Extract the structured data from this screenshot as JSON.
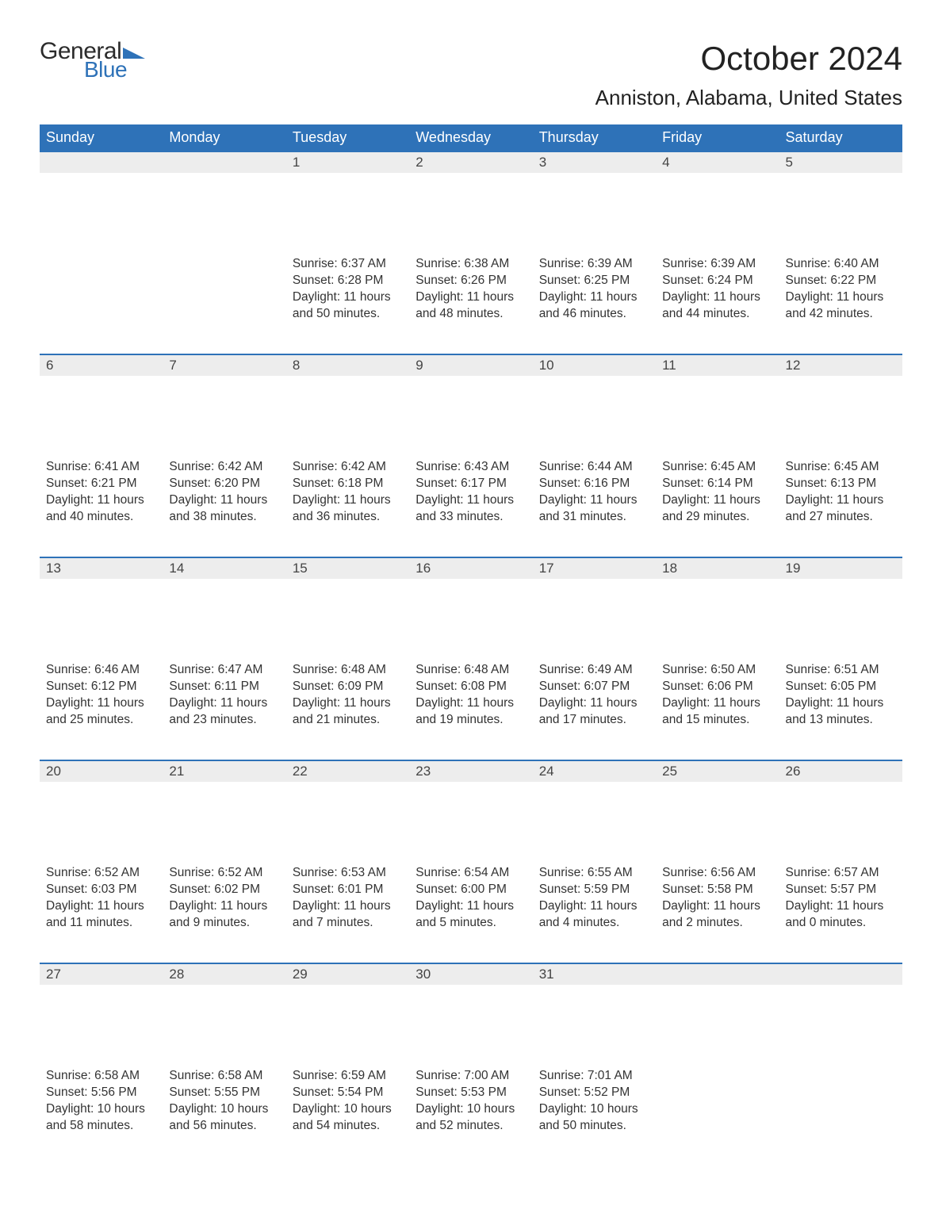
{
  "logo": {
    "text_general": "General",
    "text_blue": "Blue",
    "flag_color": "#2e72b8"
  },
  "title": "October 2024",
  "location": "Anniston, Alabama, United States",
  "colors": {
    "header_bg": "#2e72b8",
    "header_text": "#ffffff",
    "daynum_bg": "#ededed",
    "row_border": "#2e72b8",
    "body_text": "#333333",
    "page_bg": "#ffffff"
  },
  "calendar": {
    "type": "table",
    "columns": [
      "Sunday",
      "Monday",
      "Tuesday",
      "Wednesday",
      "Thursday",
      "Friday",
      "Saturday"
    ],
    "weeks": [
      [
        null,
        null,
        {
          "n": "1",
          "sunrise": "6:37 AM",
          "sunset": "6:28 PM",
          "daylight": "11 hours and 50 minutes."
        },
        {
          "n": "2",
          "sunrise": "6:38 AM",
          "sunset": "6:26 PM",
          "daylight": "11 hours and 48 minutes."
        },
        {
          "n": "3",
          "sunrise": "6:39 AM",
          "sunset": "6:25 PM",
          "daylight": "11 hours and 46 minutes."
        },
        {
          "n": "4",
          "sunrise": "6:39 AM",
          "sunset": "6:24 PM",
          "daylight": "11 hours and 44 minutes."
        },
        {
          "n": "5",
          "sunrise": "6:40 AM",
          "sunset": "6:22 PM",
          "daylight": "11 hours and 42 minutes."
        }
      ],
      [
        {
          "n": "6",
          "sunrise": "6:41 AM",
          "sunset": "6:21 PM",
          "daylight": "11 hours and 40 minutes."
        },
        {
          "n": "7",
          "sunrise": "6:42 AM",
          "sunset": "6:20 PM",
          "daylight": "11 hours and 38 minutes."
        },
        {
          "n": "8",
          "sunrise": "6:42 AM",
          "sunset": "6:18 PM",
          "daylight": "11 hours and 36 minutes."
        },
        {
          "n": "9",
          "sunrise": "6:43 AM",
          "sunset": "6:17 PM",
          "daylight": "11 hours and 33 minutes."
        },
        {
          "n": "10",
          "sunrise": "6:44 AM",
          "sunset": "6:16 PM",
          "daylight": "11 hours and 31 minutes."
        },
        {
          "n": "11",
          "sunrise": "6:45 AM",
          "sunset": "6:14 PM",
          "daylight": "11 hours and 29 minutes."
        },
        {
          "n": "12",
          "sunrise": "6:45 AM",
          "sunset": "6:13 PM",
          "daylight": "11 hours and 27 minutes."
        }
      ],
      [
        {
          "n": "13",
          "sunrise": "6:46 AM",
          "sunset": "6:12 PM",
          "daylight": "11 hours and 25 minutes."
        },
        {
          "n": "14",
          "sunrise": "6:47 AM",
          "sunset": "6:11 PM",
          "daylight": "11 hours and 23 minutes."
        },
        {
          "n": "15",
          "sunrise": "6:48 AM",
          "sunset": "6:09 PM",
          "daylight": "11 hours and 21 minutes."
        },
        {
          "n": "16",
          "sunrise": "6:48 AM",
          "sunset": "6:08 PM",
          "daylight": "11 hours and 19 minutes."
        },
        {
          "n": "17",
          "sunrise": "6:49 AM",
          "sunset": "6:07 PM",
          "daylight": "11 hours and 17 minutes."
        },
        {
          "n": "18",
          "sunrise": "6:50 AM",
          "sunset": "6:06 PM",
          "daylight": "11 hours and 15 minutes."
        },
        {
          "n": "19",
          "sunrise": "6:51 AM",
          "sunset": "6:05 PM",
          "daylight": "11 hours and 13 minutes."
        }
      ],
      [
        {
          "n": "20",
          "sunrise": "6:52 AM",
          "sunset": "6:03 PM",
          "daylight": "11 hours and 11 minutes."
        },
        {
          "n": "21",
          "sunrise": "6:52 AM",
          "sunset": "6:02 PM",
          "daylight": "11 hours and 9 minutes."
        },
        {
          "n": "22",
          "sunrise": "6:53 AM",
          "sunset": "6:01 PM",
          "daylight": "11 hours and 7 minutes."
        },
        {
          "n": "23",
          "sunrise": "6:54 AM",
          "sunset": "6:00 PM",
          "daylight": "11 hours and 5 minutes."
        },
        {
          "n": "24",
          "sunrise": "6:55 AM",
          "sunset": "5:59 PM",
          "daylight": "11 hours and 4 minutes."
        },
        {
          "n": "25",
          "sunrise": "6:56 AM",
          "sunset": "5:58 PM",
          "daylight": "11 hours and 2 minutes."
        },
        {
          "n": "26",
          "sunrise": "6:57 AM",
          "sunset": "5:57 PM",
          "daylight": "11 hours and 0 minutes."
        }
      ],
      [
        {
          "n": "27",
          "sunrise": "6:58 AM",
          "sunset": "5:56 PM",
          "daylight": "10 hours and 58 minutes."
        },
        {
          "n": "28",
          "sunrise": "6:58 AM",
          "sunset": "5:55 PM",
          "daylight": "10 hours and 56 minutes."
        },
        {
          "n": "29",
          "sunrise": "6:59 AM",
          "sunset": "5:54 PM",
          "daylight": "10 hours and 54 minutes."
        },
        {
          "n": "30",
          "sunrise": "7:00 AM",
          "sunset": "5:53 PM",
          "daylight": "10 hours and 52 minutes."
        },
        {
          "n": "31",
          "sunrise": "7:01 AM",
          "sunset": "5:52 PM",
          "daylight": "10 hours and 50 minutes."
        },
        null,
        null
      ]
    ],
    "labels": {
      "sunrise": "Sunrise:",
      "sunset": "Sunset:",
      "daylight": "Daylight:"
    }
  }
}
